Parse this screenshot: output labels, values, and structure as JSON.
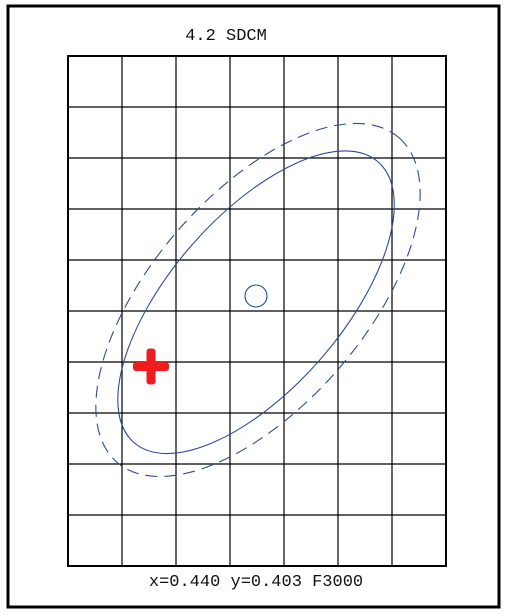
{
  "diagram": {
    "title": "4.2 SDCM",
    "footer": "x=0.440 y=0.403 F3000"
  }
}
